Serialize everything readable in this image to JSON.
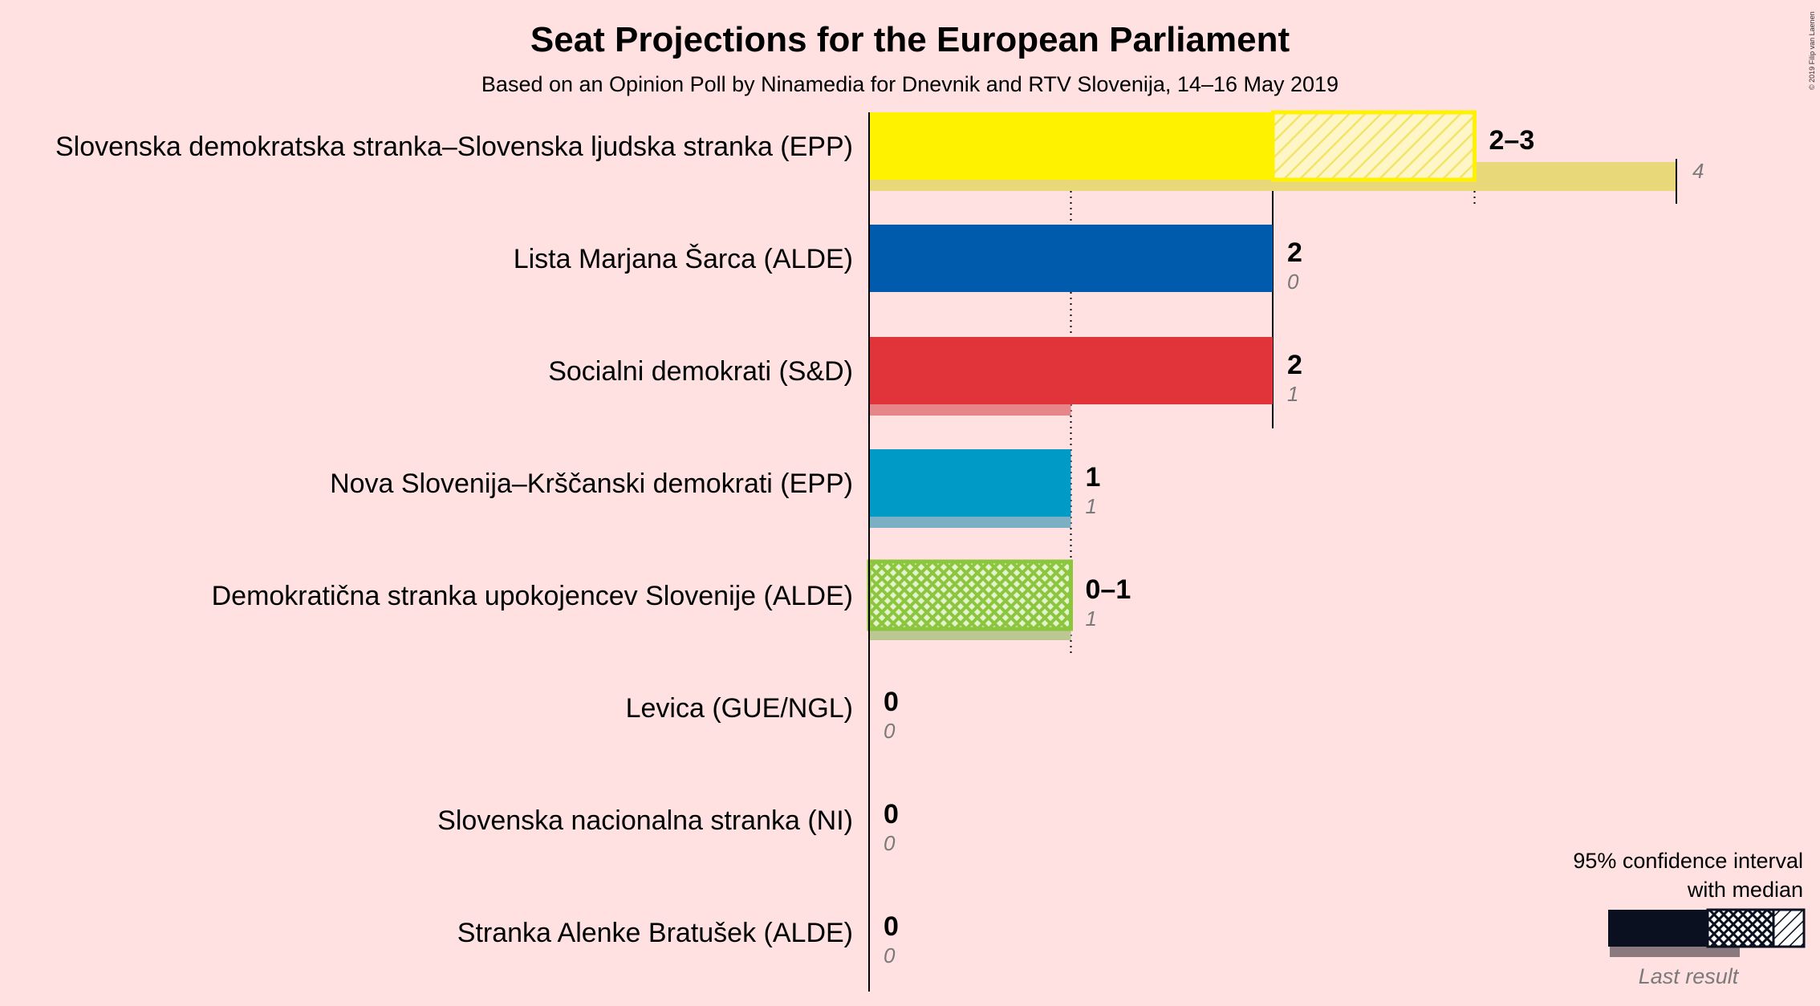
{
  "title": "Seat Projections for the European Parliament",
  "subtitle": "Based on an Opinion Poll by Ninamedia for Dnevnik and RTV Slovenija, 14–16 May 2019",
  "copyright": "© 2019 Filip van Laenen",
  "legend": {
    "line1": "95% confidence interval",
    "line2": "with median",
    "last_result": "Last result"
  },
  "chart_data": {
    "type": "bar",
    "orientation": "horizontal",
    "title": "Seat Projections for the European Parliament",
    "subtitle": "Based on an Opinion Poll by Ninamedia for Dnevnik and RTV Slovenija, 14–16 May 2019",
    "xlim": [
      0,
      4
    ],
    "gridlines": [
      1,
      2,
      3
    ],
    "parties": [
      {
        "name": "Slovenska demokratska stranka–Slovenska ljudska stranka (EPP)",
        "color": "#FFF200",
        "last_color": "#E8D87A",
        "low": 2,
        "median": 2,
        "high": 3,
        "range_label": "2–3",
        "last": 4,
        "last_label": "4",
        "median_bar": "solid"
      },
      {
        "name": "Lista Marjana Šarca (ALDE)",
        "color": "#005BAC",
        "last_color": "#5A86BD",
        "low": 2,
        "median": 2,
        "high": 2,
        "range_label": "2",
        "last": 0,
        "last_label": "0",
        "median_bar": "solid"
      },
      {
        "name": "Socialni demokrati (S&D)",
        "color": "#E0343A",
        "last_color": "#E7868A",
        "low": 2,
        "median": 2,
        "high": 2,
        "range_label": "2",
        "last": 1,
        "last_label": "1",
        "median_bar": "solid"
      },
      {
        "name": "Nova Slovenija–Krščanski demokrati (EPP)",
        "color": "#009AC7",
        "last_color": "#7BAFC3",
        "low": 1,
        "median": 1,
        "high": 1,
        "range_label": "1",
        "last": 1,
        "last_label": "1",
        "median_bar": "solid"
      },
      {
        "name": "Demokratična stranka upokojencev Slovenije (ALDE)",
        "color": "#8CC63F",
        "last_color": "#BCC793",
        "low": 0,
        "median": 1,
        "high": 1,
        "range_label": "0–1",
        "last": 1,
        "last_label": "1",
        "median_bar": "crosshatch"
      },
      {
        "name": "Levica (GUE/NGL)",
        "color": "#C2181E",
        "last_color": "#C08080",
        "low": 0,
        "median": 0,
        "high": 0,
        "range_label": "0",
        "last": 0,
        "last_label": "0",
        "median_bar": "solid"
      },
      {
        "name": "Slovenska nacionalna stranka (NI)",
        "color": "#1A3A7A",
        "last_color": "#8090B0",
        "low": 0,
        "median": 0,
        "high": 0,
        "range_label": "0",
        "last": 0,
        "last_label": "0",
        "median_bar": "solid"
      },
      {
        "name": "Stranka Alenke Bratušek (ALDE)",
        "color": "#00A0D6",
        "last_color": "#80B8D0",
        "low": 0,
        "median": 0,
        "high": 0,
        "range_label": "0",
        "last": 0,
        "last_label": "0",
        "median_bar": "solid"
      }
    ]
  }
}
